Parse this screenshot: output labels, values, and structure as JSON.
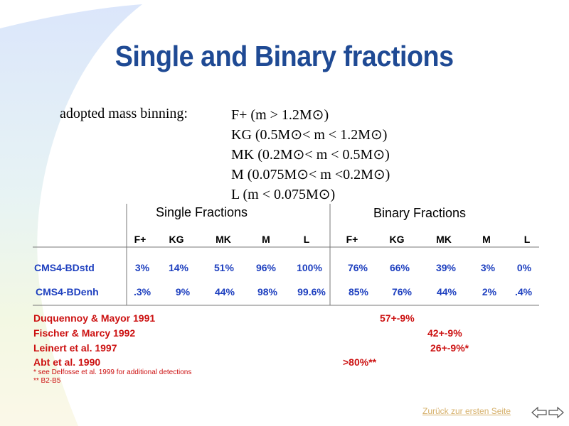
{
  "title": "Single and Binary fractions",
  "binning": {
    "label": "adopted mass binning:",
    "lines": [
      "F+ (m > 1.2M⊙)",
      "KG (0.5M⊙< m < 1.2M⊙)",
      "MK (0.2M⊙< m < 0.5M⊙)",
      "M (0.075M⊙< m <0.2M⊙)",
      "L (m < 0.075M⊙)"
    ]
  },
  "table": {
    "single_header": "Single  Fractions",
    "binary_header": "Binary Fractions",
    "columns": [
      "F+",
      "KG",
      "MK",
      "M",
      "L",
      "F+",
      "KG",
      "MK",
      "M",
      "L"
    ],
    "rows": [
      {
        "label": "CMS4-BDstd",
        "values": [
          "3%",
          "14%",
          "51%",
          "96%",
          "100%",
          "76%",
          "66%",
          "39%",
          "3%",
          "0%"
        ]
      },
      {
        "label": "CMS4-BDenh",
        "values": [
          ".3%",
          "9%",
          "44%",
          "98%",
          "99.6%",
          "85%",
          "76%",
          "44%",
          "2%",
          ".4%"
        ]
      }
    ]
  },
  "references": [
    {
      "name": "Duquennoy & Mayor 1991",
      "value": "57+-9%"
    },
    {
      "name": "Fischer & Marcy 1992",
      "value": "42+-9%"
    },
    {
      "name": "Leinert et al. 1997",
      "value": "26+-9%*"
    },
    {
      "name": "Abt et al. 1990",
      "value": ">80%**"
    }
  ],
  "notes": [
    "* see Delfosse et al. 1999 for additional detections",
    "** B2-B5"
  ],
  "nav": {
    "link": "Zurück zur ersten Seite"
  },
  "colors": {
    "title": "#1f4a94",
    "blue_text": "#1d3fbf",
    "red_text": "#cc1111",
    "link": "#d6b06a"
  }
}
